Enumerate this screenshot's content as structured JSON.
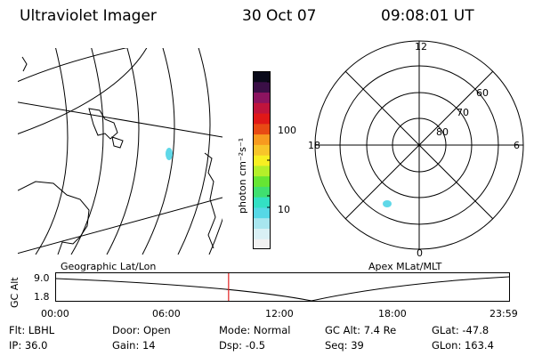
{
  "header": {
    "instrument": "Ultraviolet Imager",
    "date": "30 Oct 07",
    "time": "09:08:01 UT"
  },
  "colorbar": {
    "unit_label": "photon cm⁻²s⁻¹",
    "ticks": [
      "100",
      "10"
    ],
    "colors": [
      "#f2f2f2",
      "#d9f0f5",
      "#a8e6ef",
      "#56d8e6",
      "#33e0c4",
      "#40e070",
      "#66e633",
      "#b4ef2a",
      "#f7ef22",
      "#f7c52a",
      "#f79a1f",
      "#e84a14",
      "#e01818",
      "#c0143c",
      "#8c1460",
      "#3a0f46",
      "#0a0a1a"
    ]
  },
  "map_left": {
    "caption": "Geographic Lat/Lon"
  },
  "map_right": {
    "caption": "Apex MLat/MLT",
    "mlt_labels": [
      "12",
      "18",
      "6",
      "0"
    ],
    "lat_labels": [
      "60",
      "70",
      "80"
    ]
  },
  "timeline": {
    "ylabel": "GC Alt",
    "yticks": [
      "9.0",
      "1.8"
    ],
    "xticks": [
      "00:00",
      "06:00",
      "12:00",
      "18:00",
      "23:59"
    ],
    "marker_time": "09:08"
  },
  "info": {
    "row1": [
      {
        "label": "Flt:",
        "value": "LBHL"
      },
      {
        "label": "Door:",
        "value": "Open"
      },
      {
        "label": "Mode:",
        "value": "Normal"
      },
      {
        "label": "GC Alt:",
        "value": "7.4 Re"
      },
      {
        "label": "GLat:",
        "value": "-47.8"
      }
    ],
    "row2": [
      {
        "label": "IP:",
        "value": "36.0"
      },
      {
        "label": "Gain:",
        "value": "14"
      },
      {
        "label": "Dsp:",
        "value": "-0.5"
      },
      {
        "label": "Seq:",
        "value": "39"
      },
      {
        "label": "GLon:",
        "value": "163.4"
      }
    ]
  },
  "colors": {
    "marker": "#e02020",
    "spot": "#5fd8e8"
  }
}
